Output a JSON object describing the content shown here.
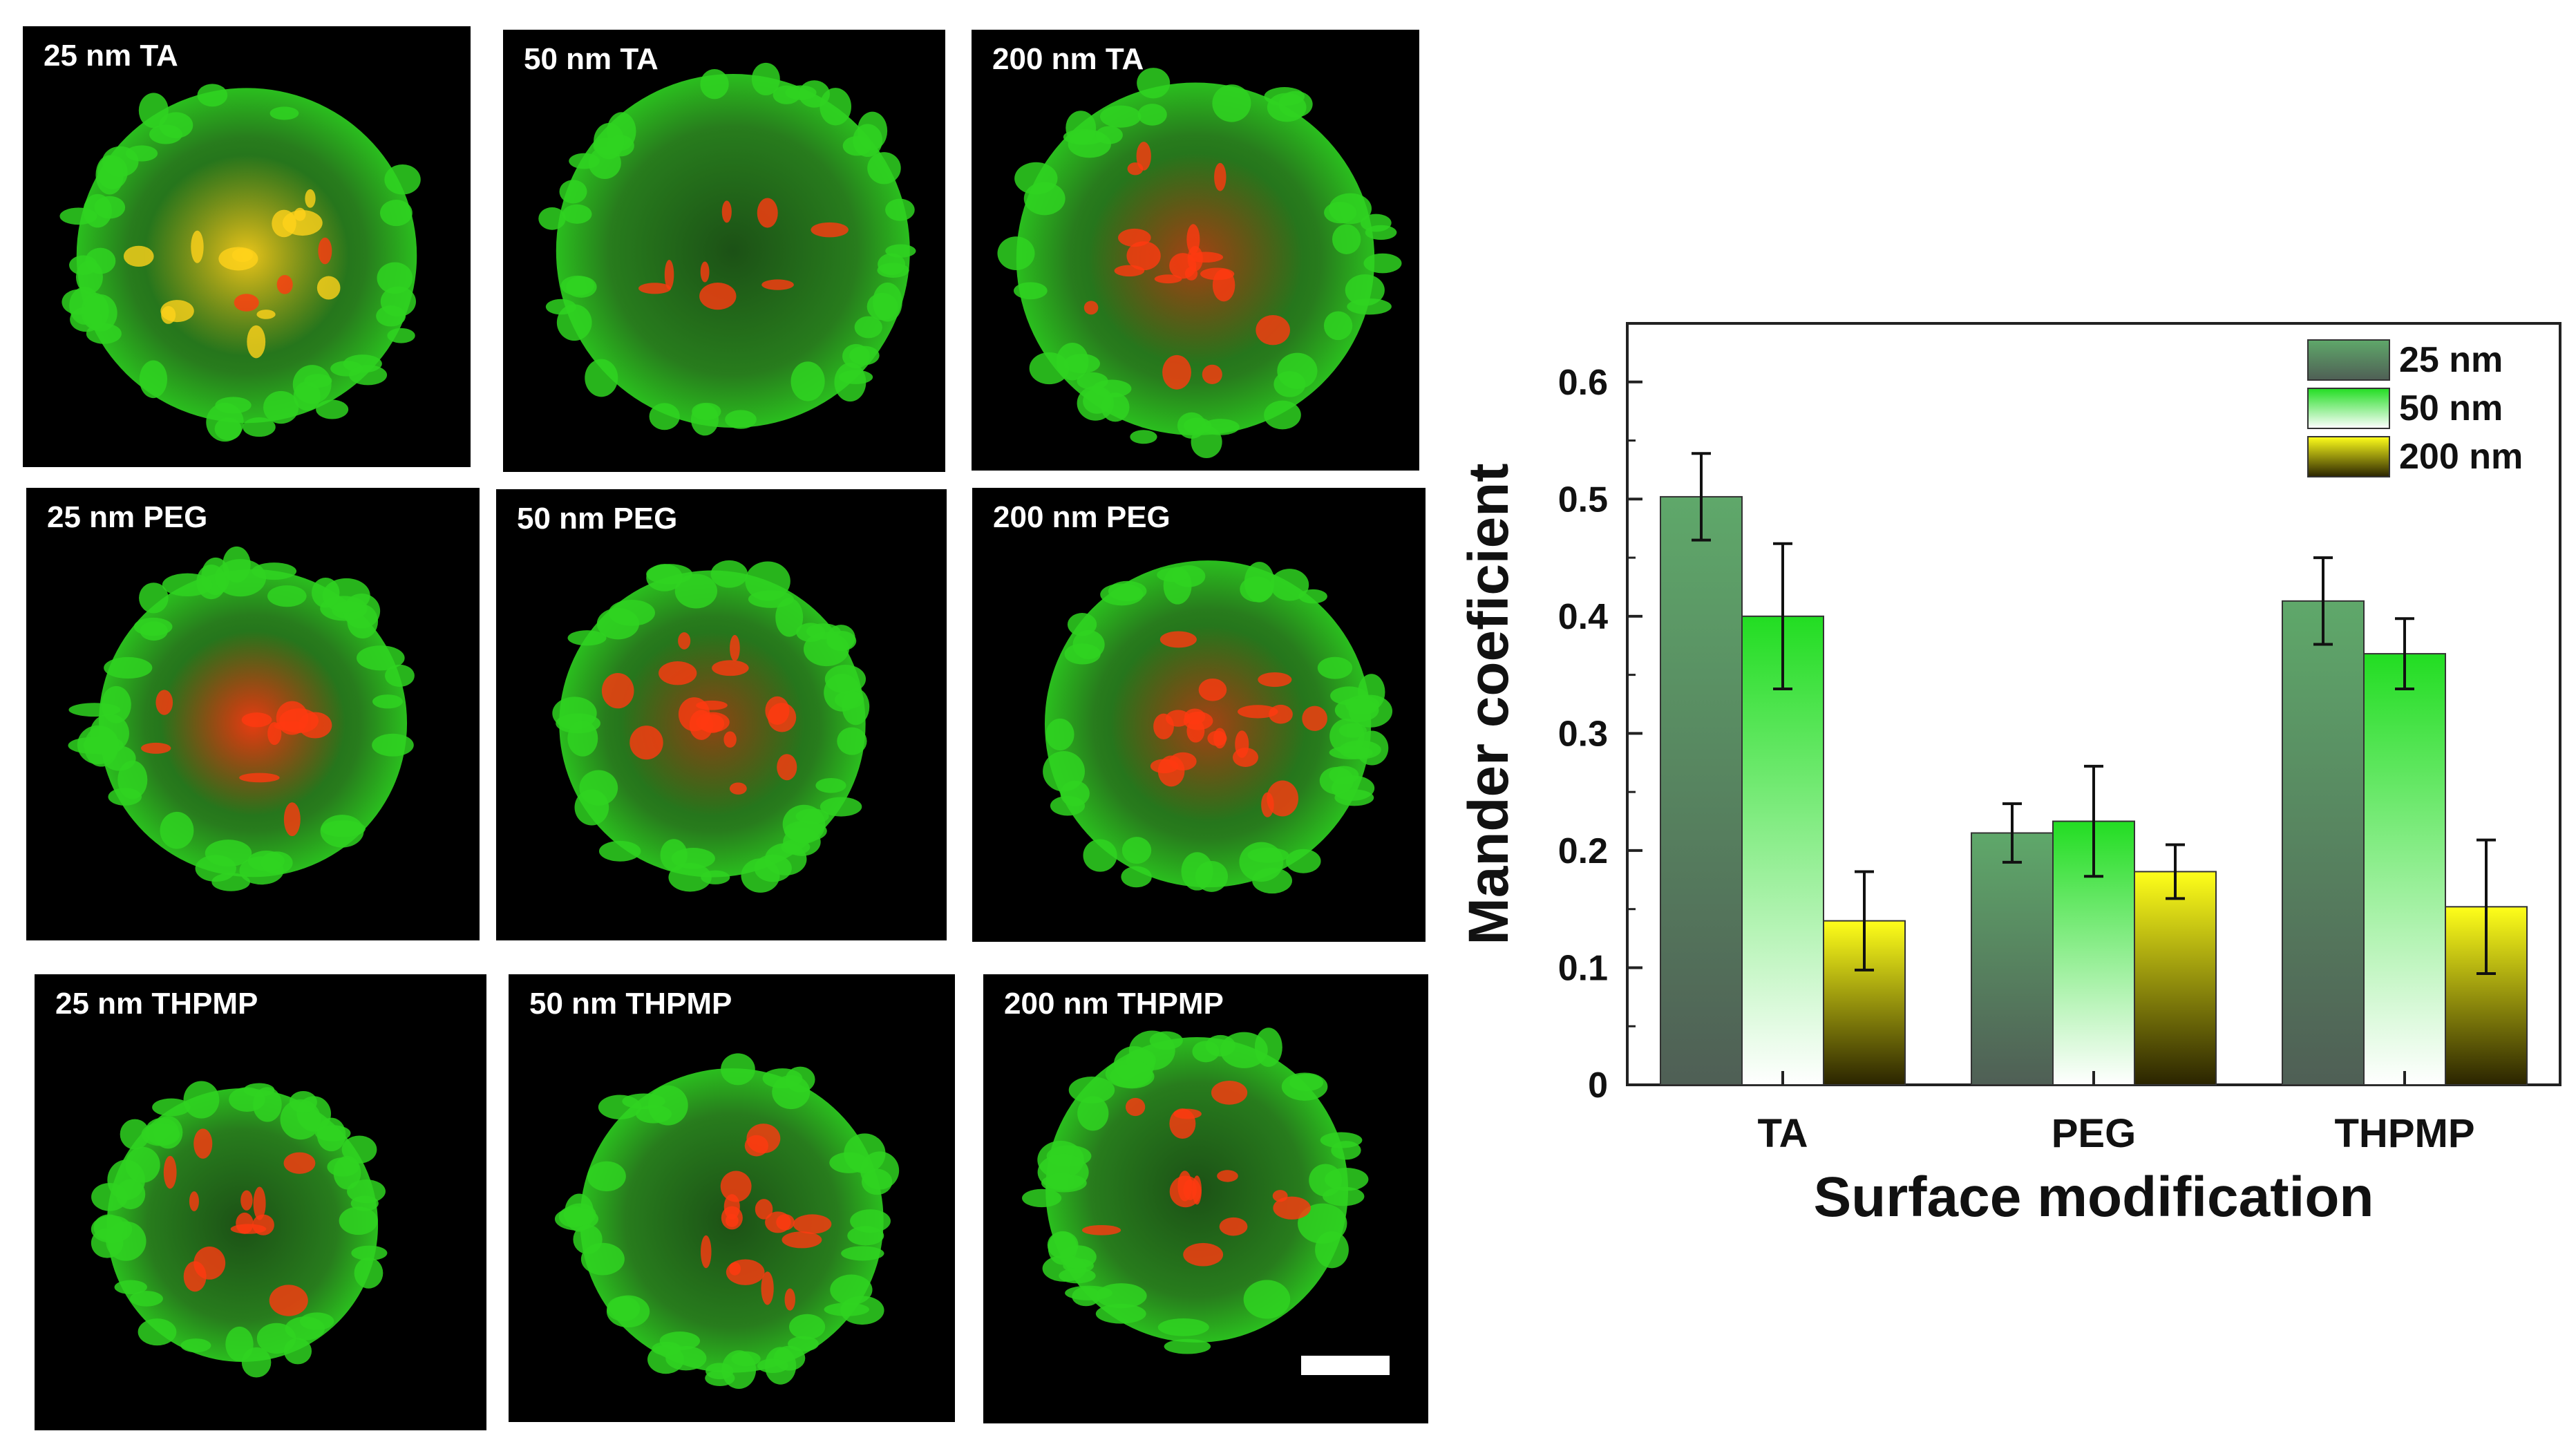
{
  "micrographs": {
    "rows": [
      [
        "25 nm TA",
        "50 nm TA",
        "200 nm TA"
      ],
      [
        "25 nm PEG",
        "50 nm PEG",
        "200 nm PEG"
      ],
      [
        "25 nm THPMP",
        "50 nm THPMP",
        "200 nm THPMP"
      ]
    ],
    "colors": {
      "green": "#2fd321",
      "red": "#ff3a10",
      "yellow": "#ffd21a"
    }
  },
  "chart_data": {
    "type": "bar",
    "categories": [
      "TA",
      "PEG",
      "THPMP"
    ],
    "series": [
      {
        "name": "25 nm",
        "values": [
          0.502,
          0.215,
          0.413
        ],
        "errors": [
          0.037,
          0.025,
          0.037
        ],
        "color_top": "#5fa86a",
        "color_bottom": "#4f5f55"
      },
      {
        "name": "50 nm",
        "values": [
          0.4,
          0.225,
          0.368
        ],
        "errors": [
          0.062,
          0.047,
          0.03
        ],
        "color_top": "#22dd22",
        "color_bottom": "#ffffff"
      },
      {
        "name": "200 nm",
        "values": [
          0.14,
          0.182,
          0.152
        ],
        "errors": [
          0.042,
          0.023,
          0.057
        ],
        "color_top": "#ffff1a",
        "color_bottom": "#2a2400"
      }
    ],
    "xlabel": "Surface modification",
    "ylabel": "Mander coeficient",
    "ylim": [
      0,
      0.65
    ],
    "yticks": [
      "0",
      "0.1",
      "0.2",
      "0.3",
      "0.4",
      "0.5",
      "0.6"
    ],
    "legend_position": "top-right"
  }
}
